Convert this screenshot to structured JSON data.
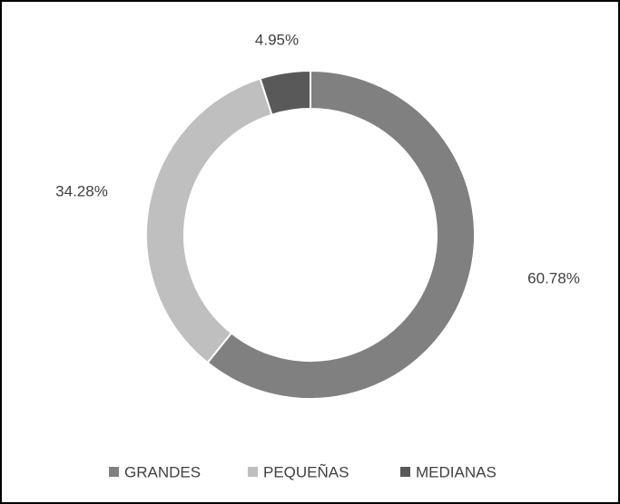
{
  "chart_data": {
    "type": "donut",
    "categories": [
      "GRANDES",
      "PEQUEÑAS",
      "MEDIANAS"
    ],
    "values": [
      60.78,
      34.28,
      4.95
    ],
    "value_labels": [
      "60.78%",
      "34.28%",
      "4.95%"
    ],
    "colors": [
      "#808080",
      "#bfbfbf",
      "#595959"
    ],
    "legend": "bottom"
  }
}
